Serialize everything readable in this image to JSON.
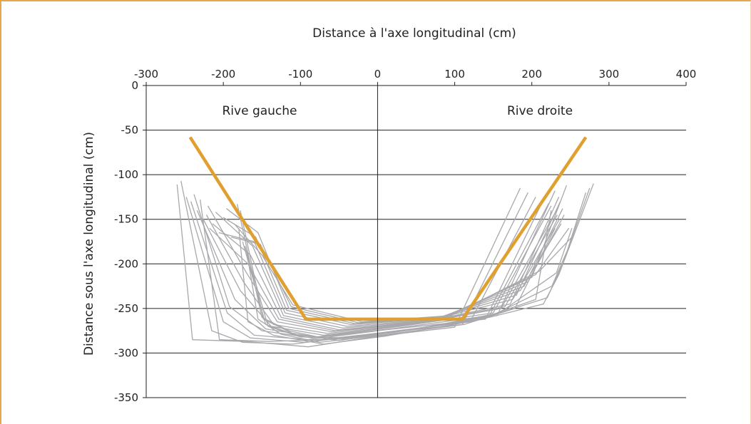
{
  "chart_data": {
    "type": "line",
    "title": "",
    "xlabel": "Distance à l'axe longitudinal (cm)",
    "ylabel": "Distance sous l'axe longitudinal (cm)",
    "xlim": [
      -300,
      400
    ],
    "ylim": [
      -350,
      0
    ],
    "x_ticks": [
      "-300",
      "-200",
      "-100",
      "0",
      "100",
      "200",
      "300",
      "400"
    ],
    "y_ticks": [
      "0",
      "-50",
      "-100",
      "-150",
      "-200",
      "-250",
      "-300",
      "-350"
    ],
    "x_axis_position": "top",
    "grid": "horizontal",
    "legend": "none",
    "annotations": [
      "Rive gauche",
      "Rive droite"
    ],
    "colors": {
      "frame": "#e3a84a",
      "template": "#e0a030",
      "profiles": "#a8a8ac",
      "axes": "#222222",
      "grid": "#222222"
    },
    "template_profile": {
      "x": [
        -243,
        -93,
        110,
        270
      ],
      "y": [
        -58,
        -262,
        -262,
        -58
      ]
    },
    "measured_profiles": [
      {
        "x": [
          -260,
          -240,
          -170,
          -90,
          0,
          100,
          185
        ],
        "y": [
          -111,
          -285,
          -287,
          -293,
          -281,
          -271,
          -115
        ]
      },
      {
        "x": [
          -255,
          -215,
          -175,
          -110,
          -10,
          110,
          195
        ],
        "y": [
          -107,
          -275,
          -288,
          -290,
          -279,
          -268,
          -120
        ]
      },
      {
        "x": [
          -248,
          -200,
          -165,
          -95,
          15,
          120,
          205
        ],
        "y": [
          -125,
          -265,
          -283,
          -288,
          -276,
          -265,
          -125
        ]
      },
      {
        "x": [
          -242,
          -195,
          -160,
          -90,
          10,
          140,
          215
        ],
        "y": [
          -130,
          -255,
          -280,
          -285,
          -274,
          -262,
          -128
        ]
      },
      {
        "x": [
          -238,
          -192,
          -150,
          -85,
          25,
          145,
          222
        ],
        "y": [
          -122,
          -248,
          -275,
          -283,
          -272,
          -258,
          -132
        ]
      },
      {
        "x": [
          -234,
          -185,
          -145,
          -80,
          30,
          150,
          225
        ],
        "y": [
          -140,
          -240,
          -273,
          -282,
          -270,
          -255,
          -135
        ]
      },
      {
        "x": [
          -230,
          -205,
          -140,
          -75,
          40,
          155,
          230
        ],
        "y": [
          -128,
          -285,
          -287,
          -285,
          -274,
          -258,
          -118
        ]
      },
      {
        "x": [
          -226,
          -178,
          -138,
          -70,
          45,
          160,
          232
        ],
        "y": [
          -150,
          -230,
          -270,
          -280,
          -268,
          -250,
          -140
        ]
      },
      {
        "x": [
          -222,
          -174,
          -135,
          -65,
          50,
          165,
          233
        ],
        "y": [
          -145,
          -220,
          -268,
          -278,
          -267,
          -248,
          -145
        ]
      },
      {
        "x": [
          -220,
          -170,
          -130,
          -60,
          55,
          172,
          235
        ],
        "y": [
          -135,
          -210,
          -265,
          -276,
          -266,
          -245,
          -125
        ]
      },
      {
        "x": [
          -218,
          -168,
          -128,
          -55,
          60,
          175,
          236
        ],
        "y": [
          -160,
          -200,
          -262,
          -275,
          -265,
          -240,
          -150
        ]
      },
      {
        "x": [
          -214,
          -165,
          -125,
          -50,
          65,
          180,
          237
        ],
        "y": [
          -155,
          -190,
          -260,
          -274,
          -264,
          -235,
          -130
        ]
      },
      {
        "x": [
          -210,
          -162,
          -122,
          -45,
          70,
          185,
          238
        ],
        "y": [
          -142,
          -180,
          -258,
          -272,
          -263,
          -230,
          -155
        ]
      },
      {
        "x": [
          -206,
          -160,
          -120,
          -40,
          75,
          190,
          240
        ],
        "y": [
          -165,
          -175,
          -255,
          -270,
          -262,
          -225,
          -138
        ]
      },
      {
        "x": [
          -200,
          -158,
          -118,
          -35,
          80,
          195,
          242
        ],
        "y": [
          -148,
          -170,
          -252,
          -268,
          -261,
          -220,
          -145
        ]
      },
      {
        "x": [
          -196,
          -155,
          -115,
          -30,
          85,
          200,
          245
        ],
        "y": [
          -138,
          -165,
          -250,
          -267,
          -260,
          -215,
          -112
        ]
      },
      {
        "x": [
          -190,
          -152,
          -112,
          -25,
          90,
          205,
          248
        ],
        "y": [
          -170,
          -178,
          -248,
          -266,
          -259,
          -212,
          -160
        ]
      },
      {
        "x": [
          -186,
          -150,
          -110,
          -20,
          95,
          210,
          252
        ],
        "y": [
          -155,
          -190,
          -246,
          -265,
          -258,
          -208,
          -170
        ]
      },
      {
        "x": [
          -182,
          -150,
          -115,
          -60,
          20,
          135,
          215,
          235,
          280
        ],
        "y": [
          -133,
          -260,
          -275,
          -285,
          -277,
          -262,
          -245,
          -212,
          -110
        ]
      },
      {
        "x": [
          -178,
          -148,
          -110,
          -50,
          25,
          140,
          220,
          240,
          275
        ],
        "y": [
          -140,
          -262,
          -278,
          -286,
          -276,
          -260,
          -238,
          -200,
          -115
        ]
      },
      {
        "x": [
          -175,
          -145,
          -105,
          -45,
          35,
          148,
          226,
          246,
          270
        ],
        "y": [
          -175,
          -268,
          -280,
          -284,
          -275,
          -258,
          -225,
          -185,
          -120
        ]
      },
      {
        "x": [
          -172,
          -142,
          -100,
          -40,
          45,
          158,
          232,
          252
        ],
        "y": [
          -180,
          -270,
          -282,
          -283,
          -274,
          -255,
          -210,
          -160
        ]
      },
      {
        "x": [
          -180,
          -168,
          -135,
          -70,
          10,
          125,
          205,
          225
        ],
        "y": [
          -160,
          -265,
          -280,
          -290,
          -281,
          -264,
          -240,
          -140
        ]
      },
      {
        "x": [
          -170,
          -155,
          -125,
          -75,
          -15,
          112,
          178,
          230
        ],
        "y": [
          -185,
          -262,
          -279,
          -288,
          -282,
          -268,
          -250,
          -160
        ]
      }
    ]
  }
}
